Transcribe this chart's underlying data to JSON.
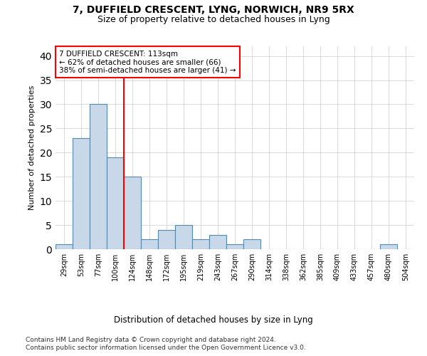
{
  "title1": "7, DUFFIELD CRESCENT, LYNG, NORWICH, NR9 5RX",
  "title2": "Size of property relative to detached houses in Lyng",
  "xlabel": "Distribution of detached houses by size in Lyng",
  "ylabel": "Number of detached properties",
  "categories": [
    "29sqm",
    "53sqm",
    "77sqm",
    "100sqm",
    "124sqm",
    "148sqm",
    "172sqm",
    "195sqm",
    "219sqm",
    "243sqm",
    "267sqm",
    "290sqm",
    "314sqm",
    "338sqm",
    "362sqm",
    "385sqm",
    "409sqm",
    "433sqm",
    "457sqm",
    "480sqm",
    "504sqm"
  ],
  "values": [
    1,
    23,
    30,
    19,
    15,
    2,
    4,
    5,
    2,
    3,
    1,
    2,
    0,
    0,
    0,
    0,
    0,
    0,
    0,
    1,
    0
  ],
  "bar_color": "#c8d8e8",
  "bar_edge_color": "#5588aa",
  "vline_x": 3.5,
  "vline_color": "red",
  "annotation_title": "7 DUFFIELD CRESCENT: 113sqm",
  "annotation_line1": "← 62% of detached houses are smaller (66)",
  "annotation_line2": "38% of semi-detached houses are larger (41) →",
  "ylim": [
    0,
    42
  ],
  "yticks": [
    0,
    5,
    10,
    15,
    20,
    25,
    30,
    35,
    40
  ],
  "footer1": "Contains HM Land Registry data © Crown copyright and database right 2024.",
  "footer2": "Contains public sector information licensed under the Open Government Licence v3.0.",
  "background_color": "#ffffff",
  "grid_color": "#cccccc"
}
